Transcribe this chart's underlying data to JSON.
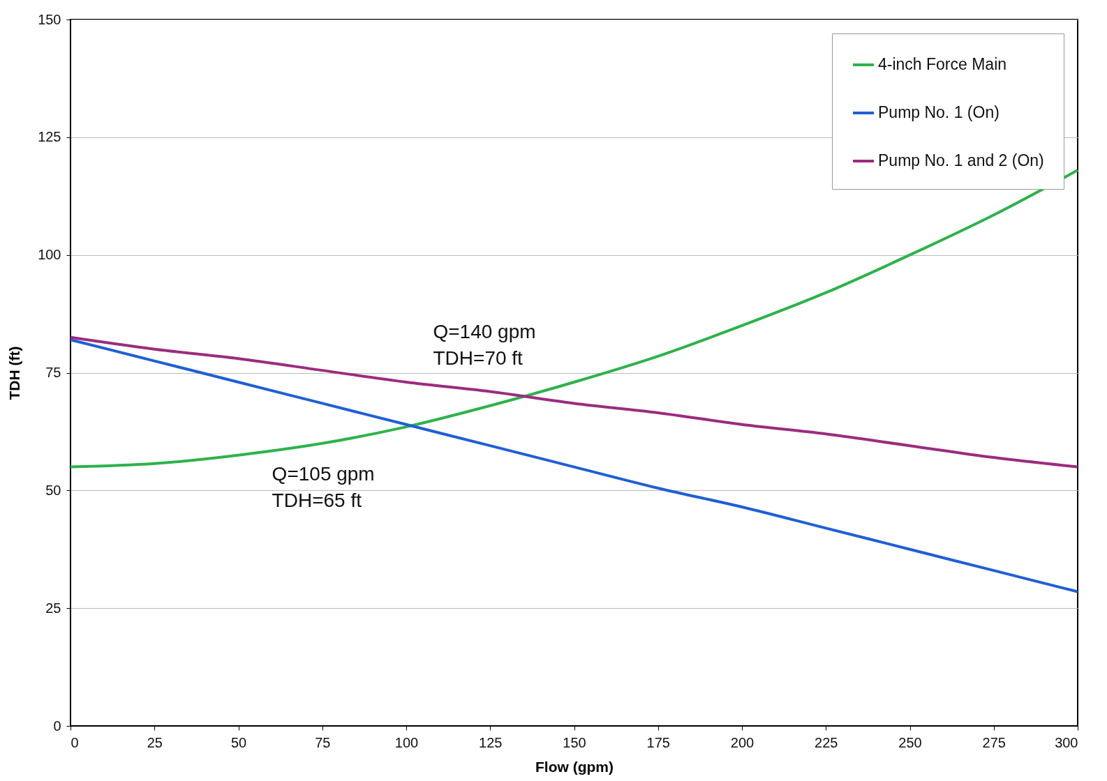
{
  "chart_data": {
    "type": "line",
    "xlabel": "Flow (gpm)",
    "ylabel": "TDH (ft)",
    "x": [
      0,
      25,
      50,
      75,
      100,
      125,
      150,
      175,
      200,
      225,
      250,
      275,
      300
    ],
    "series": [
      {
        "name": "4-inch Force Main",
        "color": "#2db34a",
        "values": [
          55,
          55.7,
          57.5,
          60,
          63.5,
          68,
          73,
          78.5,
          85,
          92,
          100,
          108.5,
          118
        ]
      },
      {
        "name": "Pump No. 1 (On)",
        "color": "#1f5fd6",
        "values": [
          82,
          77.5,
          73,
          68.5,
          64,
          59.5,
          55,
          50.5,
          46.5,
          42,
          37.5,
          33,
          28.5
        ]
      },
      {
        "name": "Pump No. 1 and 2 (On)",
        "color": "#9b2c7e",
        "values": [
          82.5,
          80,
          78,
          75.5,
          73,
          71,
          68.5,
          66.5,
          64,
          62,
          59.5,
          57,
          55
        ]
      }
    ],
    "xlim": [
      0,
      300
    ],
    "xticks": [
      0,
      25,
      50,
      75,
      100,
      125,
      150,
      175,
      200,
      225,
      250,
      275,
      300
    ],
    "ylim": [
      0,
      150
    ],
    "yticks": [
      0,
      25,
      50,
      75,
      100,
      125,
      150
    ],
    "grid": "y",
    "legend": "top right",
    "marker": "none",
    "line_style": "solid",
    "annotations": [
      "Q=105 gpm\nTDH=65 ft",
      "Q=140 gpm\nTDH=70 ft"
    ]
  }
}
